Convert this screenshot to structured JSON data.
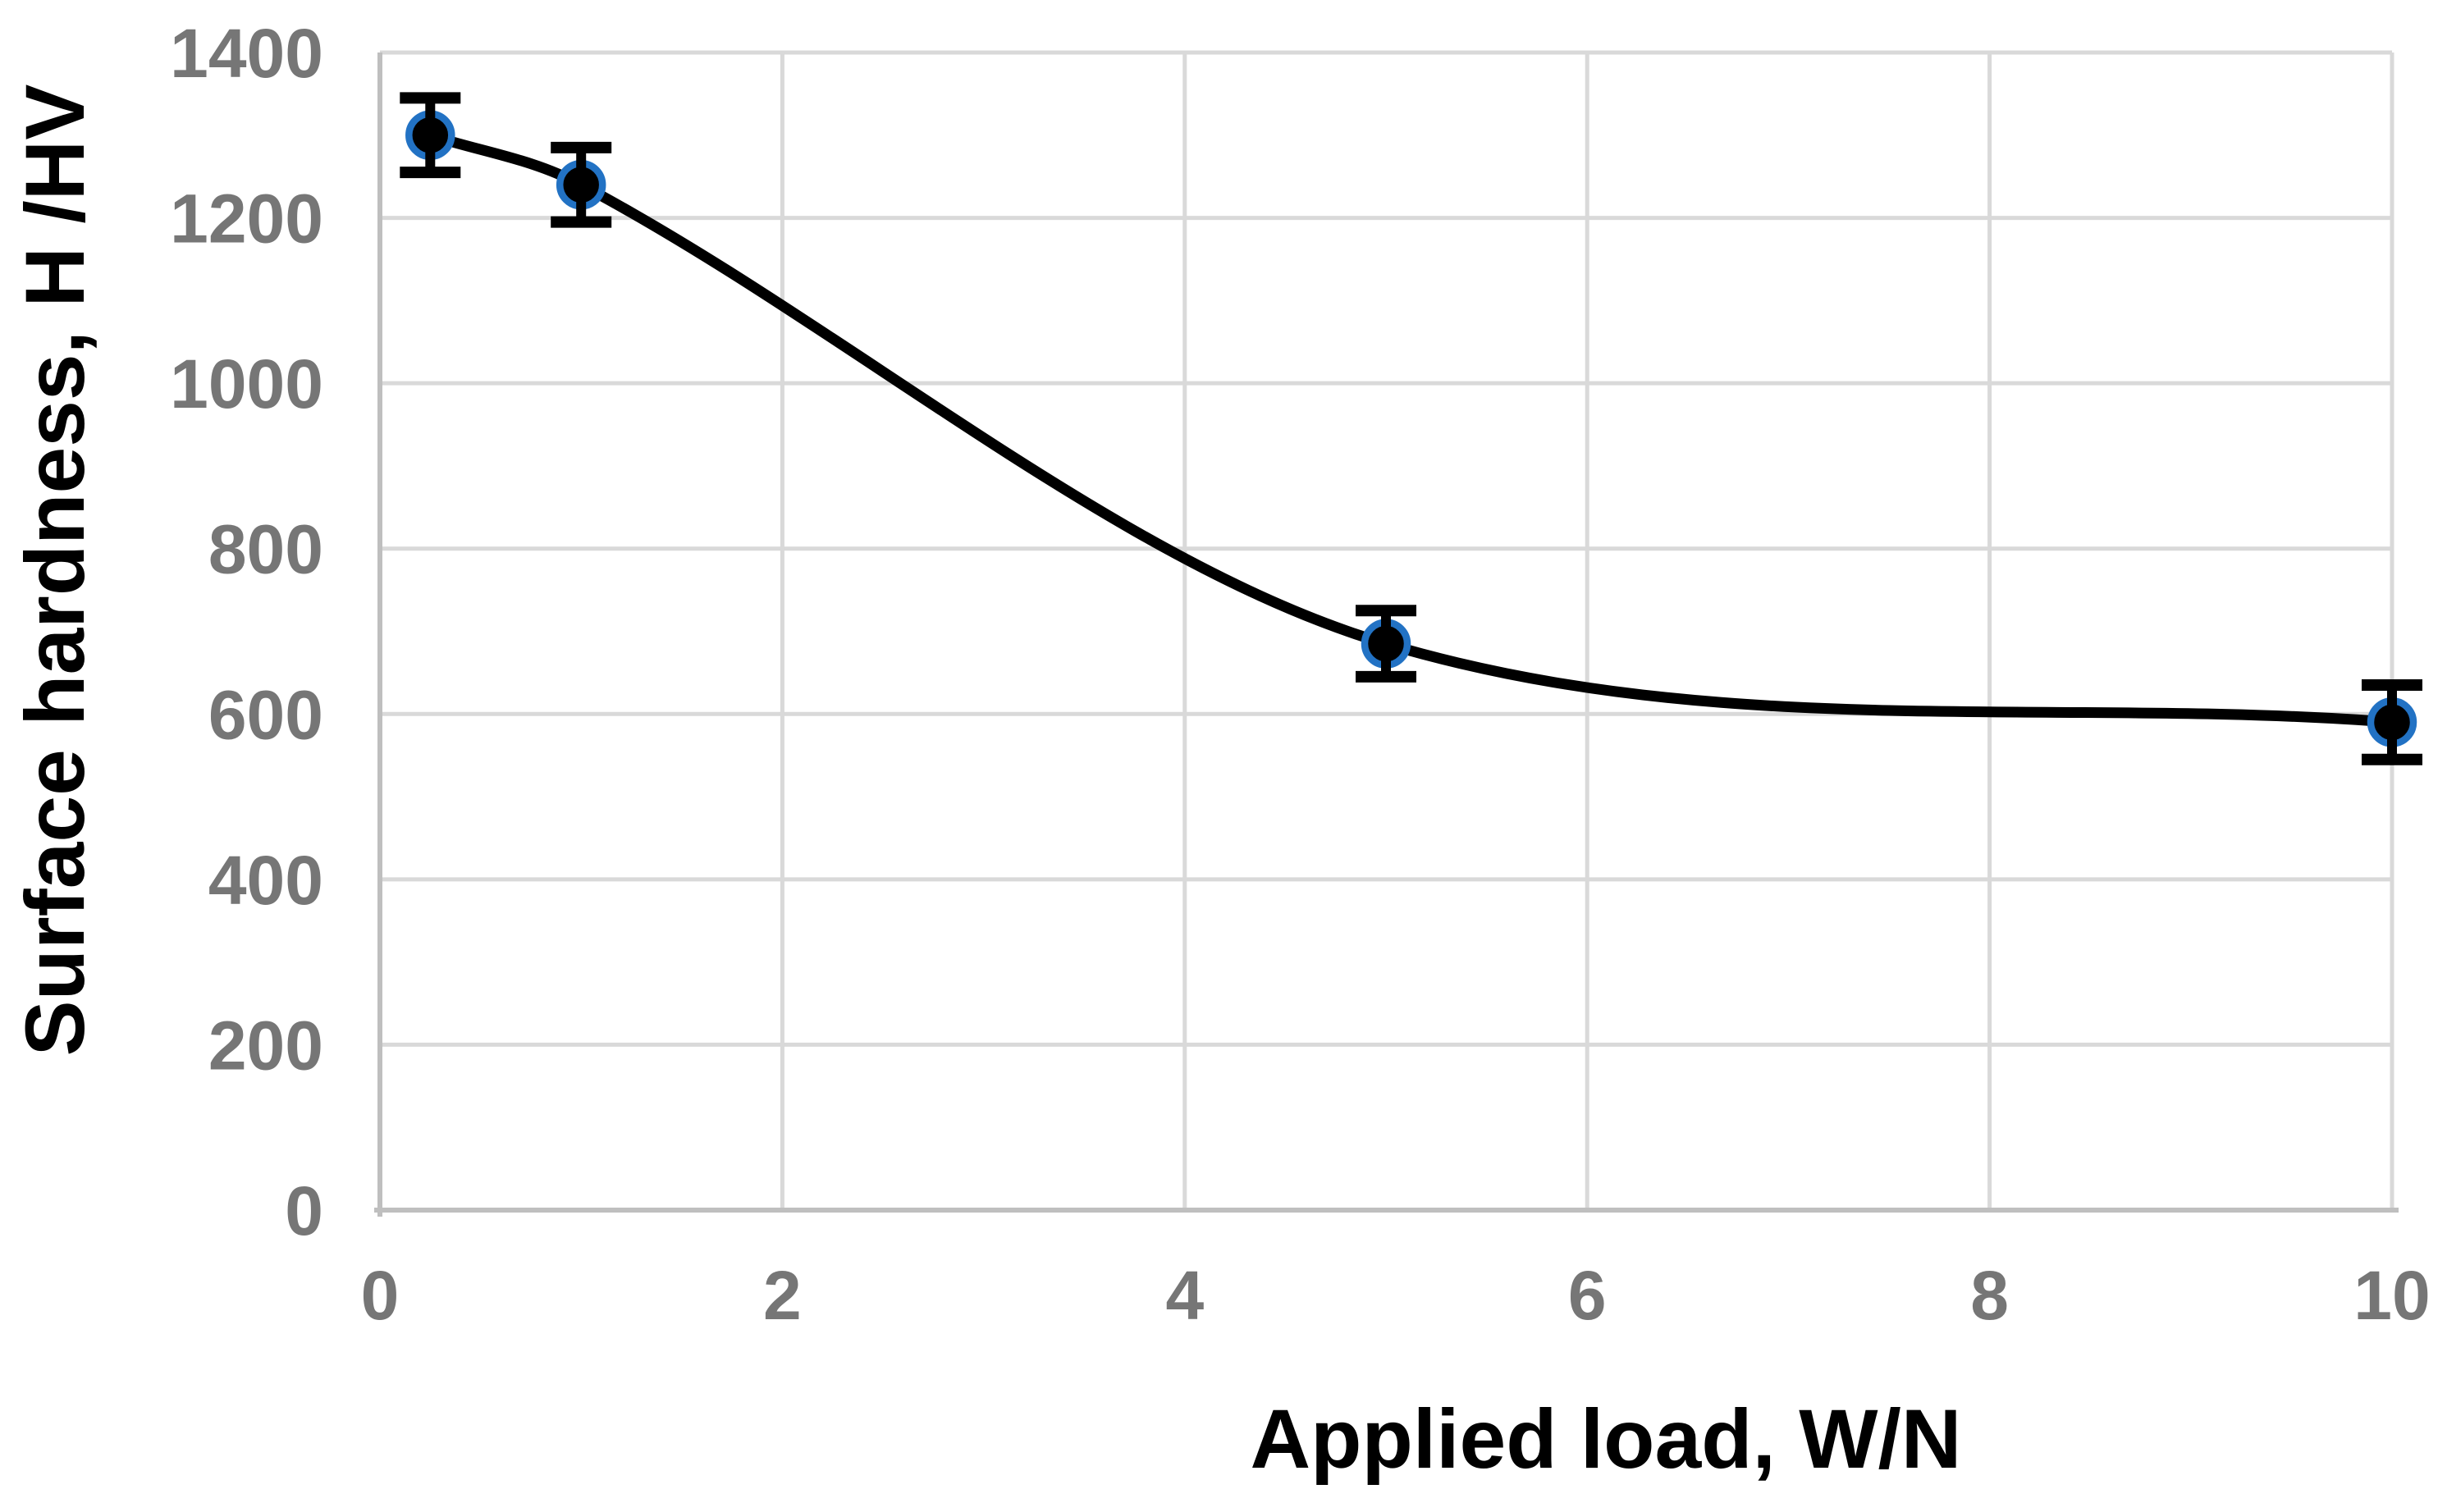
{
  "figure": {
    "background": "#FFFFFF",
    "title": ""
  },
  "chart_data": {
    "type": "scatter",
    "title": "",
    "xlabel": "Applied load, W/N",
    "ylabel": "Surface hardness, H /HV",
    "series": [
      {
        "x": [
          0.25,
          1,
          5,
          10
        ],
        "y": [
          1300,
          1240,
          685,
          590
        ],
        "yerr": [
          45,
          45,
          40,
          45
        ],
        "marker": "filled-circle-with-ring",
        "smooth_line": true
      }
    ],
    "xticks": [
      0,
      2,
      4,
      6,
      8,
      10
    ],
    "yticks": [
      0,
      200,
      400,
      600,
      800,
      1000,
      1200,
      1400
    ],
    "xtick_labels": [
      "0",
      "2",
      "4",
      "6",
      "8",
      "10"
    ],
    "ytick_labels": [
      "0",
      "200",
      "400",
      "600",
      "800",
      "1000",
      "1200",
      "1400"
    ],
    "xlim": [
      0,
      10
    ],
    "ylim": [
      0,
      1400
    ],
    "grid": true,
    "legend_position": "none",
    "colors": {
      "line": "#000000",
      "marker_fill": "#000000",
      "marker_ring": "#2272C4",
      "error_bar": "#000000",
      "gridline": "#D9D9D9",
      "axis_line": "#BFBFBF",
      "tick_label": "#767676",
      "axis_title": "#000000"
    }
  }
}
